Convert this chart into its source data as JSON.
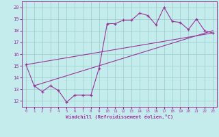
{
  "xlabel": "Windchill (Refroidissement éolien,°C)",
  "background_color": "#c5ecec",
  "line_color": "#993399",
  "grid_color": "#99cccc",
  "xlim": [
    -0.5,
    23.5
  ],
  "ylim": [
    11.5,
    20.5
  ],
  "xticks": [
    0,
    1,
    2,
    3,
    4,
    5,
    6,
    7,
    8,
    9,
    10,
    11,
    12,
    13,
    14,
    15,
    16,
    17,
    18,
    19,
    20,
    21,
    22,
    23
  ],
  "yticks": [
    12,
    13,
    14,
    15,
    16,
    17,
    18,
    19,
    20
  ],
  "main_x": [
    0,
    1,
    2,
    3,
    4,
    5,
    6,
    7,
    8,
    9,
    10,
    11,
    12,
    13,
    14,
    15,
    16,
    17,
    18,
    19,
    20,
    21,
    22,
    23
  ],
  "main_y": [
    15.1,
    13.3,
    12.8,
    13.3,
    12.9,
    11.9,
    12.5,
    12.5,
    12.5,
    14.8,
    18.6,
    18.6,
    18.9,
    18.9,
    19.5,
    19.3,
    18.5,
    20.0,
    18.8,
    18.7,
    18.1,
    19.0,
    18.0,
    17.8
  ],
  "trend1_x": [
    0,
    23
  ],
  "trend1_y": [
    15.1,
    17.8
  ],
  "trend2_x": [
    1,
    23
  ],
  "trend2_y": [
    13.3,
    18.0
  ]
}
